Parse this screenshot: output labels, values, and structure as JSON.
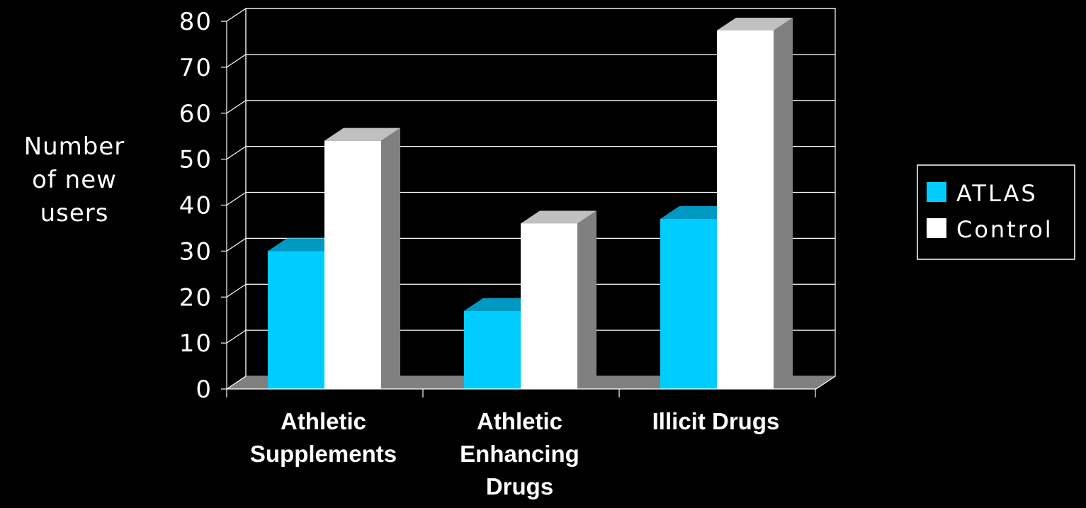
{
  "chart_data": {
    "type": "bar",
    "categories": [
      [
        "Athletic",
        "Supplements"
      ],
      [
        "Athletic",
        "Enhancing",
        "Drugs"
      ],
      [
        "Illicit Drugs"
      ]
    ],
    "series": [
      {
        "name": "ATLAS",
        "values": [
          30,
          17,
          37
        ],
        "color": "#00CCFF",
        "top_color": "#0099C2"
      },
      {
        "name": "Control",
        "values": [
          54,
          36,
          78
        ],
        "color": "#FFFFFF",
        "top_color": "#C0C0C0"
      }
    ],
    "ylabel": [
      "Number",
      "of new",
      "users"
    ],
    "xlabel": "",
    "title": "",
    "ylim": [
      0,
      80
    ],
    "yticks": [
      0,
      10,
      20,
      30,
      40,
      50,
      60,
      70,
      80
    ],
    "grid": true,
    "legend_position": "right",
    "style": "3d-clustered-column",
    "colors": {
      "background": "#000000",
      "gridline": "#FFFFFF",
      "side_face": "#808080",
      "floor": "#808080",
      "text": "#FFFFFF"
    }
  }
}
